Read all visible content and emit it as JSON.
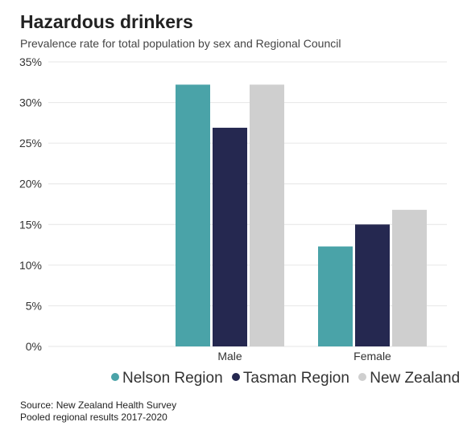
{
  "colors": {
    "nelson": "#4aa3a8",
    "tasman": "#252850",
    "new_zealand": "#cfcfcf",
    "grid": "#e6e6e6",
    "tick_text": "#333333"
  },
  "chart_data": {
    "type": "bar",
    "title": "Hazardous drinkers",
    "subtitle": "Prevalence rate for total population by sex and Regional Council",
    "categories": [
      "Male",
      "Female"
    ],
    "series": [
      {
        "name": "Nelson Region",
        "values": [
          32.2,
          12.3
        ],
        "color": "#4aa3a8"
      },
      {
        "name": "Tasman Region",
        "values": [
          26.9,
          15.0
        ],
        "color": "#252850"
      },
      {
        "name": "New Zealand",
        "values": [
          32.2,
          16.8
        ],
        "color": "#cfcfcf"
      }
    ],
    "ylim": [
      0,
      35
    ],
    "yticks": [
      0,
      5,
      10,
      15,
      20,
      25,
      30,
      35
    ],
    "ytick_labels": [
      "0%",
      "5%",
      "10%",
      "15%",
      "20%",
      "25%",
      "30%",
      "35%"
    ],
    "grid": true,
    "legend_position": "bottom",
    "xlabel": "",
    "ylabel": ""
  },
  "source": {
    "line1": "Source: New Zealand Health Survey",
    "line2": "Pooled regional results 2017-2020"
  }
}
